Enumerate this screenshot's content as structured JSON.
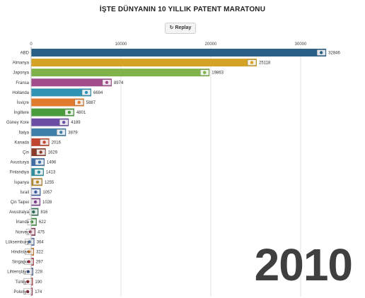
{
  "title": "İŞTE DÜNYANIN 10 YILLIK PATENT MARATONU",
  "replay": {
    "icon": "replay-icon",
    "label": "Replay"
  },
  "year": "2010",
  "chart_data": {
    "type": "bar",
    "orientation": "horizontal",
    "title": "İŞTE DÜNYANIN 10 YILLIK PATENT MARATONU",
    "xlim": [
      0,
      35000
    ],
    "xticks": [
      0,
      10000,
      20000,
      30000
    ],
    "grid": true,
    "categories": [
      "ABD",
      "Almanya",
      "Japonya",
      "Fransa",
      "Hollanda",
      "İsviçre",
      "İngiltere",
      "Güney Kore",
      "İtalya",
      "Kanada",
      "Çin",
      "Avusturya",
      "Finlandiya",
      "İspanya",
      "İsrail",
      "Çin Taipei",
      "Avustralya",
      "İrlanda",
      "Norveç",
      "Lüksemburg",
      "Hindistan",
      "Singapur",
      "Lihtenştayn",
      "Türkiye",
      "Polonya"
    ],
    "values": [
      32846,
      25118,
      19863,
      8974,
      6694,
      5887,
      4801,
      4189,
      3879,
      2016,
      1629,
      1496,
      1413,
      1255,
      1057,
      1028,
      816,
      622,
      475,
      364,
      322,
      297,
      228,
      190,
      174
    ],
    "bar_colors": [
      "#2a5f86",
      "#d4a326",
      "#7fb34a",
      "#a24c8c",
      "#2f93b4",
      "#e07a2c",
      "#4a9b3c",
      "#6a4ea3",
      "#3d7fa6",
      "#c1442f",
      "#8a3b2b",
      "#3f6ea6",
      "#2d8f9b",
      "#b8882c",
      "#3f5fa8",
      "#7c3c8c",
      "#2f6c54",
      "#3c8a3c",
      "#8c2f4f",
      "#4c6fa5",
      "#d07a2a",
      "#a32f3f",
      "#3f5f8f",
      "#b02a2a",
      "#9c2f3f"
    ]
  }
}
